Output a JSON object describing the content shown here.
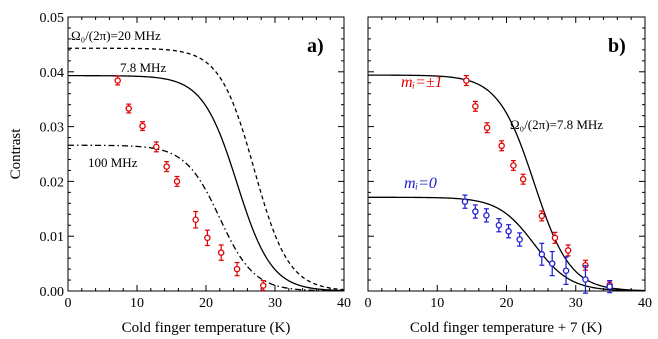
{
  "chart_data": [
    {
      "type": "scatter",
      "panel_label": "a)",
      "xlabel": "Cold finger temperature (K)",
      "ylabel": "Contrast",
      "xlim": [
        0,
        40
      ],
      "ylim": [
        0,
        0.05
      ],
      "xticks": [
        "0",
        "10",
        "20",
        "30",
        "40"
      ],
      "yticks": [
        "0.00",
        "0.01",
        "0.02",
        "0.03",
        "0.04",
        "0.05"
      ],
      "annotations": {
        "curve_20": "Ω₀/(2π)=20 MHz",
        "curve_7_8": "7.8 MHz",
        "curve_100": "100 MHz"
      },
      "series": [
        {
          "kind": "points",
          "color": "#e00000",
          "x": [
            7.2,
            8.8,
            10.8,
            12.8,
            14.3,
            15.8,
            18.5,
            20.2,
            22.2,
            24.5,
            28.3
          ],
          "y": [
            0.0384,
            0.0333,
            0.0301,
            0.0263,
            0.0227,
            0.02,
            0.013,
            0.0097,
            0.007,
            0.004,
            0.001
          ],
          "err": [
            0.0008,
            0.0008,
            0.0008,
            0.0009,
            0.0009,
            0.0009,
            0.0015,
            0.0014,
            0.0014,
            0.0012,
            0.0009
          ]
        },
        {
          "kind": "curve",
          "style": "dashed",
          "amp": 0.0443,
          "t0": 27.0,
          "w": 2.5
        },
        {
          "kind": "curve",
          "style": "solid",
          "amp": 0.0393,
          "t0": 24.5,
          "w": 2.5
        },
        {
          "kind": "curve",
          "style": "dashdot",
          "amp": 0.0266,
          "t0": 22.0,
          "w": 2.5
        }
      ]
    },
    {
      "type": "scatter",
      "panel_label": "b)",
      "xlabel": "Cold finger temperature + 7 (K)",
      "ylabel": "",
      "xlim": [
        0,
        40
      ],
      "ylim": [
        0,
        0.05
      ],
      "xticks": [
        "0",
        "10",
        "20",
        "30",
        "40"
      ],
      "annotations": {
        "curve_label": "Ω₀/(2π)=7.8 MHz",
        "series_pm1": "mᵢ=±1",
        "series_0": "mᵢ=0"
      },
      "series": [
        {
          "kind": "points",
          "name": "mᵢ=±1",
          "color": "#e00000",
          "x": [
            14.2,
            15.5,
            17.2,
            19.3,
            21.0,
            22.4,
            25.1,
            27.0,
            28.9,
            31.4,
            34.9
          ],
          "y": [
            0.0384,
            0.0337,
            0.0298,
            0.0265,
            0.0229,
            0.0204,
            0.0137,
            0.0097,
            0.0074,
            0.0047,
            0.0011
          ],
          "err": [
            0.0009,
            0.0009,
            0.0009,
            0.0009,
            0.0009,
            0.0009,
            0.0009,
            0.001,
            0.001,
            0.0009,
            0.0007
          ]
        },
        {
          "kind": "points",
          "name": "mᵢ=0",
          "color": "#1a1ad6",
          "x": [
            14.0,
            15.5,
            17.1,
            18.9,
            20.3,
            21.9,
            25.1,
            26.6,
            28.6,
            31.4,
            34.9
          ],
          "y": [
            0.0163,
            0.0145,
            0.0138,
            0.012,
            0.0109,
            0.0094,
            0.0067,
            0.005,
            0.0037,
            0.0021,
            0.0008
          ],
          "err": [
            0.0012,
            0.0012,
            0.0012,
            0.0012,
            0.0012,
            0.0012,
            0.002,
            0.0022,
            0.0025,
            0.0025,
            0.0011
          ]
        },
        {
          "kind": "curve",
          "style": "solid",
          "amp": 0.0394,
          "t0": 24.0,
          "w": 2.6
        },
        {
          "kind": "curve",
          "style": "solid",
          "amp": 0.0171,
          "t0": 24.0,
          "w": 2.6
        }
      ]
    }
  ]
}
